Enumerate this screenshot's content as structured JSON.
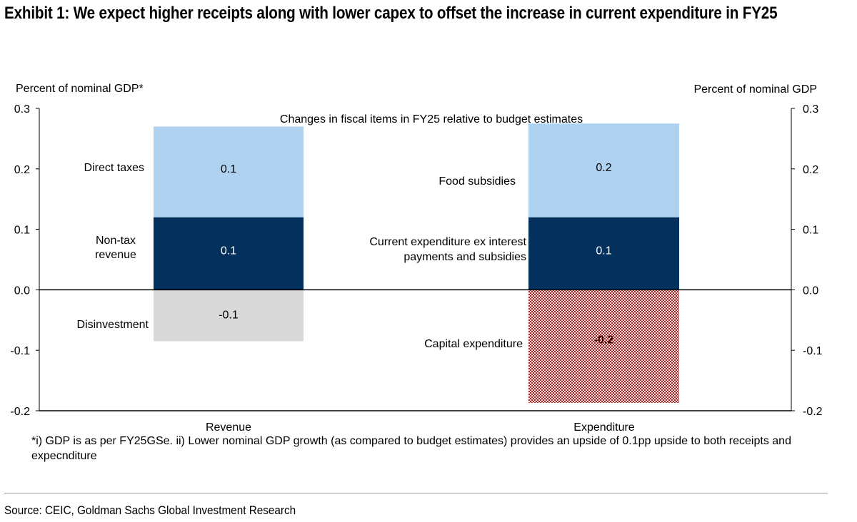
{
  "title": "Exhibit 1: We expect higher receipts along with lower capex to offset the increase in current expenditure in FY25",
  "note": "*i) GDP is as per FY25GSe. ii) Lower nominal GDP growth (as compared to budget estimates) provides an  upside of 0.1pp upside to both receipts and expecnditure",
  "source": "Source: CEIC, Goldman Sachs Global Investment Research",
  "chart_data": {
    "type": "bar",
    "stacked": true,
    "subtitle": "Changes in fiscal items in FY25 relative to budget estimates",
    "ylabel_left": "Percent of nominal GDP*",
    "ylabel_right": "Percent of nominal GDP",
    "ylim": [
      -0.2,
      0.3
    ],
    "yticks": [
      "0.3",
      "0.2",
      "0.1",
      "0.0",
      "-0.1",
      "-0.2"
    ],
    "grid": false,
    "categories": [
      "Revenue",
      "Expenditure"
    ],
    "segments": [
      {
        "category": "Revenue",
        "name": "Direct taxes",
        "value": 0.12,
        "label": "0.1",
        "color": "#03305c"
      },
      {
        "category": "Revenue",
        "name": "Non-tax revenue",
        "value": 0.15,
        "label": "0.1",
        "color": "#aed2f0"
      },
      {
        "category": "Revenue",
        "name": "Disinvestment",
        "value": -0.085,
        "label": "-0.1",
        "color": "#d9d9d9"
      },
      {
        "category": "Expenditure",
        "name": "Food subsidies",
        "value": 0.12,
        "label": "0.1",
        "color": "#03305c"
      },
      {
        "category": "Expenditure",
        "name": "Current expenditure ex interest payments and subsidies",
        "value": 0.155,
        "label": "0.2",
        "color": "#aed2f0"
      },
      {
        "category": "Expenditure",
        "name": "Capital expenditure",
        "value": -0.187,
        "label": "-0.2",
        "color": "#a0302c"
      }
    ]
  }
}
